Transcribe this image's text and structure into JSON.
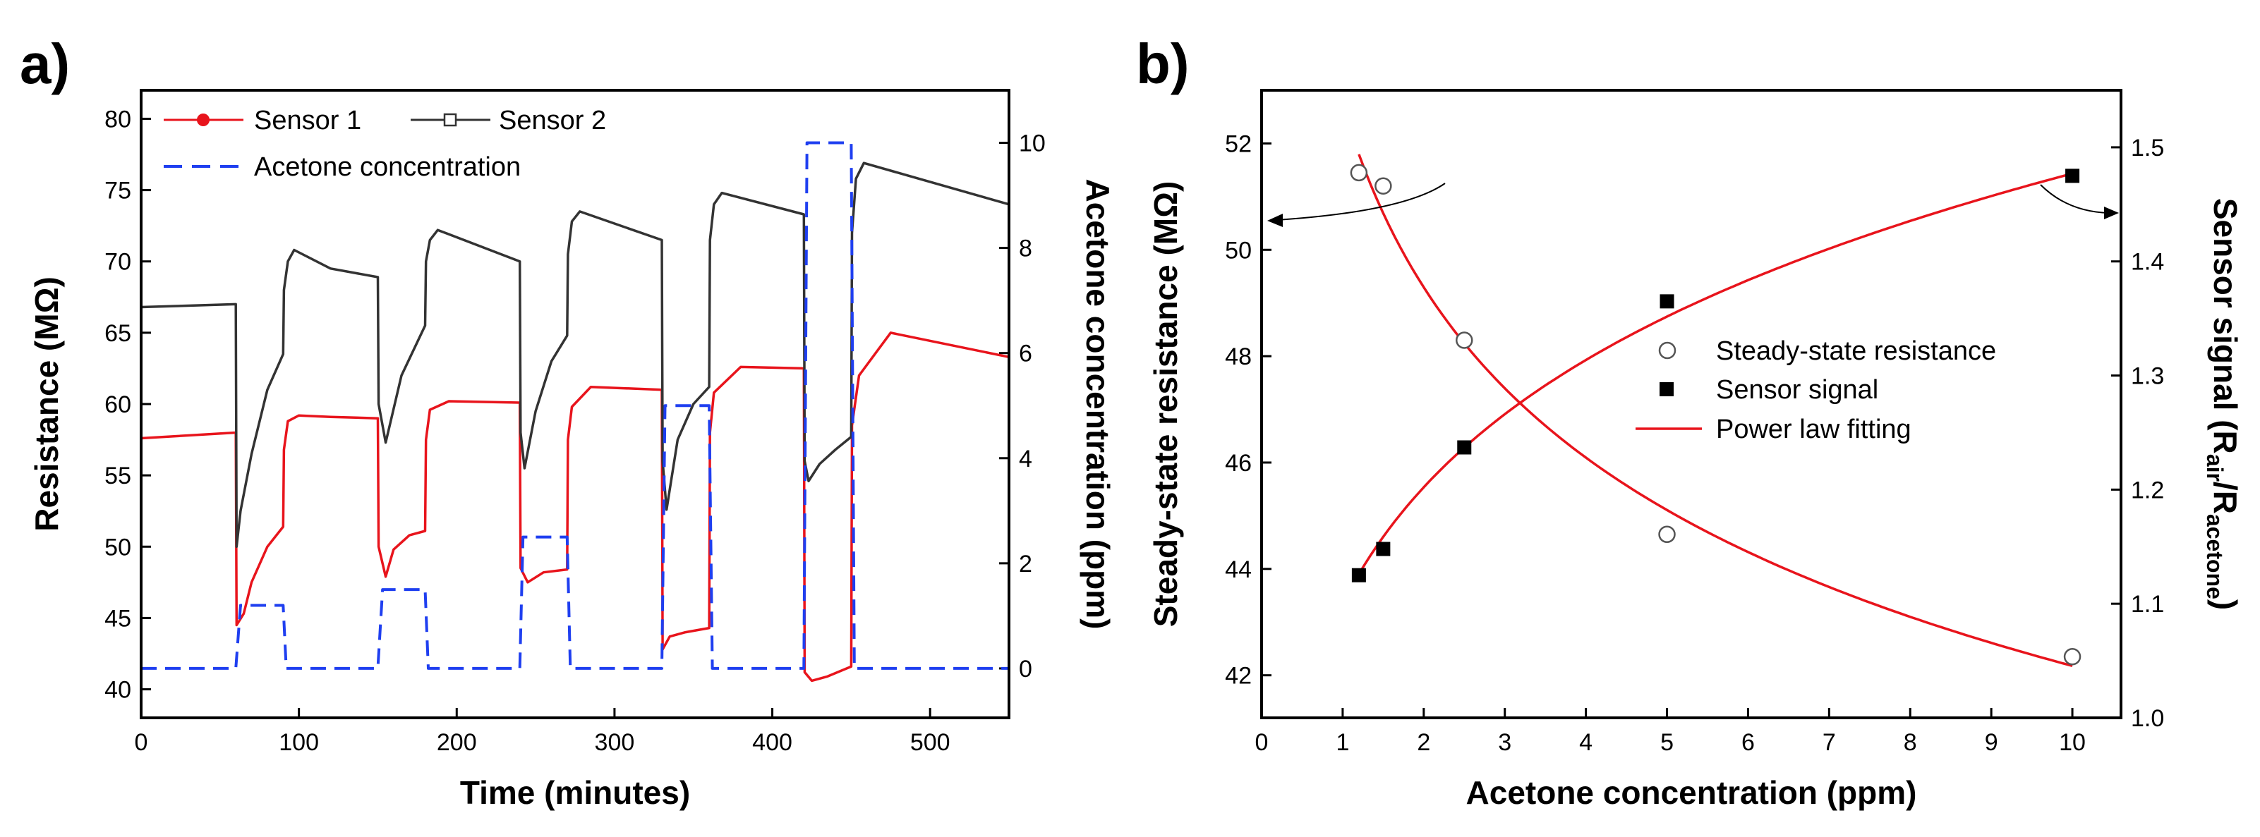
{
  "chart_data": [
    {
      "type": "line",
      "panel_label": "a)",
      "xlabel": "Time (minutes)",
      "ylabel": "Resistance (MΩ)",
      "y2label": "Acetone concentration (ppm)",
      "xlim": [
        0,
        550
      ],
      "ylim": [
        38,
        82
      ],
      "y2lim": [
        -0.94,
        11.0
      ],
      "xticks": [
        "0",
        "100",
        "200",
        "300",
        "400",
        "500"
      ],
      "yticks": [
        "40",
        "45",
        "50",
        "55",
        "60",
        "65",
        "70",
        "75",
        "80"
      ],
      "y2ticks": [
        "0",
        "2",
        "4",
        "6",
        "8",
        "10"
      ],
      "legend_placement": "top-left",
      "series": [
        {
          "name": "Sensor 1",
          "axis": "left",
          "color": "#e8141c",
          "marker": "filled-circle",
          "x": [
            0,
            60,
            60.5,
            65,
            70,
            80,
            90,
            90.5,
            93,
            100,
            120,
            150,
            150.5,
            155,
            160,
            170,
            180,
            180.5,
            183,
            195,
            240,
            240.5,
            245,
            255,
            270,
            270.5,
            273,
            285,
            330,
            330.5,
            335,
            345,
            360,
            360.5,
            363,
            380,
            420,
            420.5,
            425,
            435,
            450,
            450.5,
            455,
            475,
            550
          ],
          "y": [
            57.6,
            58.0,
            44.5,
            45.3,
            47.5,
            50.0,
            51.4,
            56.8,
            58.8,
            59.2,
            59.1,
            59.0,
            50.0,
            47.9,
            49.8,
            50.8,
            51.1,
            57.5,
            59.6,
            60.2,
            60.1,
            48.5,
            47.5,
            48.2,
            48.4,
            57.5,
            59.8,
            61.2,
            61.0,
            42.8,
            43.7,
            44.0,
            44.3,
            58.0,
            60.8,
            62.6,
            62.5,
            41.2,
            40.6,
            40.9,
            41.6,
            58.5,
            62.0,
            65.0,
            63.3
          ]
        },
        {
          "name": "Sensor 2",
          "axis": "left",
          "color": "#333333",
          "marker": "open-square",
          "x": [
            0,
            60,
            60.5,
            63,
            70,
            80,
            90,
            90.5,
            93,
            97,
            120,
            150,
            150.5,
            155,
            165,
            180,
            180.5,
            183,
            188,
            240,
            240.5,
            243,
            250,
            260,
            270,
            270.5,
            273,
            278,
            330,
            330.5,
            333,
            340,
            350,
            360,
            360.5,
            363,
            368,
            420,
            420.5,
            423,
            430,
            440,
            450,
            450.5,
            453,
            458,
            550
          ],
          "y": [
            66.8,
            67.0,
            50.0,
            52.5,
            56.5,
            61.0,
            63.5,
            68.0,
            70.0,
            70.8,
            69.5,
            68.9,
            60.0,
            57.3,
            62.0,
            65.5,
            70.0,
            71.5,
            72.2,
            70.0,
            58.0,
            55.5,
            59.5,
            63.0,
            64.8,
            70.5,
            72.8,
            73.5,
            71.5,
            56.0,
            52.6,
            57.5,
            60.0,
            61.2,
            71.5,
            74.0,
            74.8,
            73.3,
            56.0,
            54.6,
            55.8,
            56.8,
            57.7,
            72.0,
            75.8,
            76.9,
            74.0
          ]
        },
        {
          "name": "Acetone concentration",
          "axis": "right",
          "color": "#1f3ff0",
          "style": "dashed",
          "x": [
            0,
            60,
            63,
            90,
            92,
            150,
            153,
            180,
            182,
            240,
            242,
            270,
            272,
            330,
            332,
            360,
            362,
            420,
            422,
            450,
            452,
            550
          ],
          "y": [
            0,
            0,
            1.2,
            1.2,
            0,
            0,
            1.5,
            1.5,
            0,
            0,
            2.5,
            2.5,
            0,
            0,
            5.0,
            5.0,
            0,
            0,
            10.0,
            10.0,
            0,
            0
          ]
        }
      ]
    },
    {
      "type": "scatter",
      "panel_label": "b)",
      "xlabel": "Acetone concentration (ppm)",
      "ylabel": "Steady-state resistance (MΩ)",
      "y2label_parts": [
        "Sensor signal (R",
        "air",
        "/R",
        "acetone",
        ")"
      ],
      "xlim": [
        0,
        10.6
      ],
      "ylim": [
        41.2,
        53.0
      ],
      "y2lim": [
        1.0,
        1.55
      ],
      "xticks": [
        "0",
        "1",
        "2",
        "3",
        "4",
        "5",
        "6",
        "7",
        "8",
        "9",
        "10"
      ],
      "yticks": [
        "42",
        "44",
        "46",
        "48",
        "50",
        "52"
      ],
      "y2ticks": [
        "1.0",
        "1.1",
        "1.2",
        "1.3",
        "1.4",
        "1.5"
      ],
      "legend_placement": "center-right",
      "series": [
        {
          "name": "Steady-state resistance",
          "axis": "left",
          "marker": "open-circle",
          "color": "#555555",
          "x": [
            1.2,
            1.5,
            2.5,
            5.0,
            10.0
          ],
          "y": [
            51.45,
            51.2,
            48.3,
            44.65,
            42.35
          ]
        },
        {
          "name": "Sensor signal",
          "axis": "right",
          "marker": "filled-square",
          "color": "#000000",
          "x": [
            1.2,
            1.5,
            2.5,
            5.0,
            10.0
          ],
          "y": [
            1.125,
            1.148,
            1.237,
            1.365,
            1.475
          ]
        },
        {
          "name": "Power law fitting",
          "color": "#e8141c",
          "style": "line",
          "fits": [
            {
              "axis": "left",
              "model": "y = a*x^b",
              "a": 52.72,
              "b": -0.0969,
              "x_range": [
                1.2,
                10.0
              ]
            },
            {
              "axis": "right",
              "model": "y = a*x^b",
              "a": 1.1,
              "b": 0.128,
              "x_range": [
                1.2,
                10.0
              ]
            }
          ]
        }
      ],
      "annotation_arrows": [
        "from Steady-state resistance points to left axis",
        "from Sensor signal points to right axis"
      ]
    }
  ]
}
